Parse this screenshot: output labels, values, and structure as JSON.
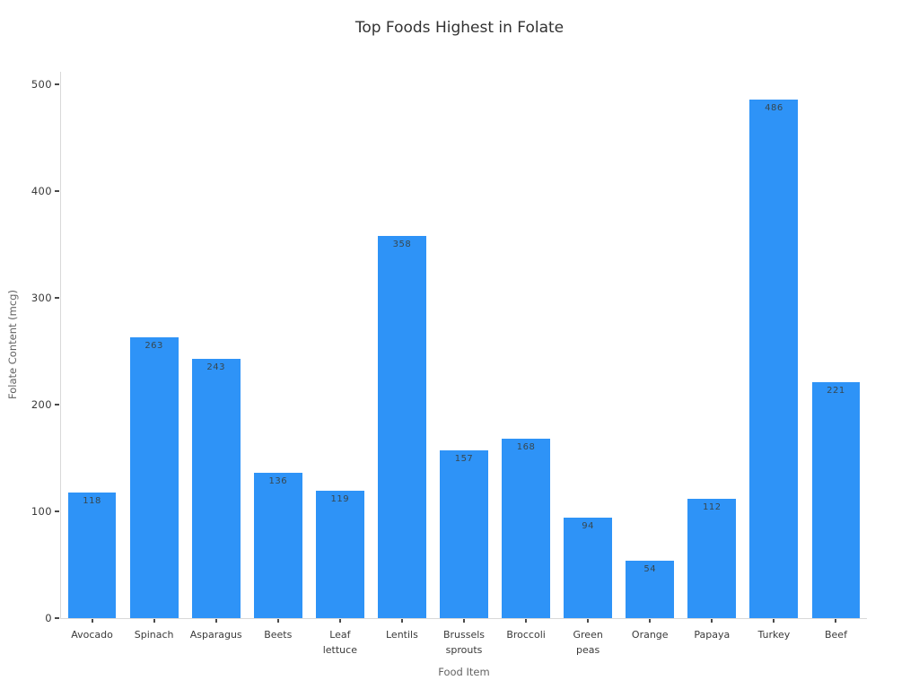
{
  "chart_data": {
    "type": "bar",
    "title": "Top Foods Highest in Folate",
    "xlabel": "Food Item",
    "ylabel": "Folate Content (mcg)",
    "categories": [
      "Avocado",
      "Spinach",
      "Asparagus",
      "Beets",
      "Leaf lettuce",
      "Lentils",
      "Brussels sprouts",
      "Broccoli",
      "Green peas",
      "Orange",
      "Papaya",
      "Turkey",
      "Beef"
    ],
    "tick_labels": [
      "Avocado",
      "Spinach",
      "Asparagus",
      "Beets",
      "Leaf\nlettuce",
      "Lentils",
      "Brussels\nsprouts",
      "Broccoli",
      "Green\npeas",
      "Orange",
      "Papaya",
      "Turkey",
      "Beef"
    ],
    "values": [
      118,
      263,
      243,
      136,
      119,
      358,
      157,
      168,
      94,
      54,
      112,
      486,
      221
    ],
    "ylim": [
      0,
      512
    ],
    "yticks": [
      0,
      100,
      200,
      300,
      400,
      500
    ],
    "grid": false,
    "legend": "none",
    "bar_color": "#2E93F7",
    "value_label_color": "#37474F",
    "tick_mark_color": "#4a4a4a",
    "axis_line_color": "#d9d9d9"
  }
}
